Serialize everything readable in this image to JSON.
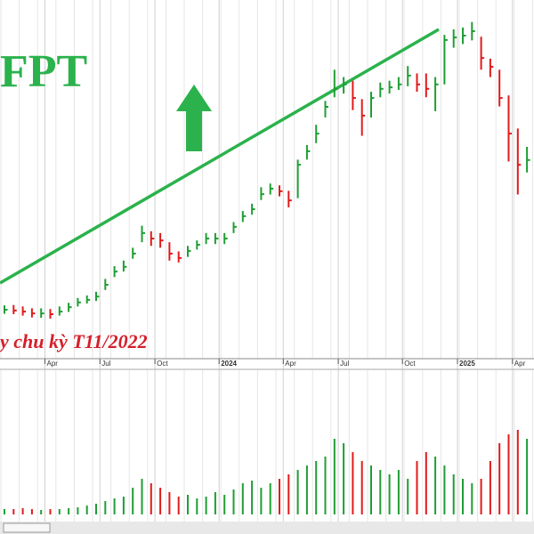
{
  "chart_data": {
    "type": "hlc",
    "title": "FPT",
    "annotation": "y chu kỳ T11/2022",
    "categories": [
      null,
      null,
      null,
      null,
      null,
      "Apr",
      null,
      null,
      null,
      null,
      null,
      "Jul",
      null,
      null,
      null,
      null,
      null,
      "Oct",
      null,
      null,
      null,
      null,
      null,
      null,
      "2024",
      null,
      null,
      null,
      null,
      null,
      null,
      "Apr",
      null,
      null,
      null,
      null,
      null,
      "Jul",
      null,
      null,
      null,
      null,
      null,
      null,
      "Oct",
      null,
      null,
      null,
      null,
      null,
      "2025",
      null,
      null,
      null,
      null,
      null,
      "Apr",
      null
    ],
    "high": [
      81.8,
      81.9,
      81.5,
      81,
      81,
      80.8,
      81.5,
      82.5,
      83.8,
      84.5,
      85.5,
      89,
      92.5,
      94,
      97.5,
      103.5,
      102,
      101.5,
      99,
      96.5,
      98,
      99.5,
      101.5,
      101.5,
      101.5,
      104.5,
      107.5,
      109.5,
      114,
      115,
      114.5,
      113,
      121.5,
      125.5,
      131,
      137.5,
      146,
      144,
      143,
      138,
      140,
      142.5,
      143,
      144,
      147,
      145,
      145,
      144,
      155.5,
      157,
      157.5,
      159,
      155,
      149,
      146,
      139,
      130,
      125
    ],
    "low": [
      79.5,
      79.4,
      79,
      78.5,
      78.4,
      78.2,
      79,
      80,
      81.5,
      82.3,
      83,
      86,
      89.5,
      91,
      94.5,
      99,
      98,
      97.5,
      94,
      93.5,
      95,
      97,
      98.5,
      98.5,
      98.5,
      101.5,
      104.5,
      106.5,
      110.5,
      112,
      111.5,
      108.5,
      111,
      121.5,
      126,
      133,
      138.5,
      139.5,
      135,
      128,
      133,
      138.5,
      139.5,
      140.5,
      141.5,
      140,
      138.5,
      134.7,
      142,
      152,
      153,
      154,
      146,
      144,
      136,
      121,
      112,
      118
    ],
    "close": [
      80.6,
      80.4,
      80.1,
      79.6,
      79.6,
      79.4,
      80.1,
      81.3,
      82.6,
      83.3,
      84.2,
      87.4,
      91.0,
      92.3,
      95.9,
      101.5,
      100.0,
      99.5,
      95.9,
      94.7,
      96.6,
      98.3,
      100.0,
      100.0,
      100.0,
      103.2,
      106.1,
      108.0,
      112.1,
      113.6,
      112.9,
      110.4,
      120.1,
      123.8,
      128.6,
      135.9,
      140.8,
      142.0,
      138.3,
      133.5,
      138.3,
      140.8,
      141.2,
      142.0,
      144.4,
      142.0,
      140.8,
      142.0,
      154.1,
      154.8,
      155.3,
      156.5,
      149.2,
      146.8,
      138.3,
      128.6,
      120.1,
      121.4
    ],
    "volume": [
      6,
      6,
      7,
      6,
      5,
      6,
      6,
      7,
      8,
      10,
      12,
      15,
      18,
      20,
      30,
      40,
      35,
      30,
      25,
      20,
      22,
      18,
      20,
      25,
      22,
      28,
      35,
      38,
      30,
      35,
      40,
      45,
      50,
      55,
      60,
      65,
      85,
      80,
      70,
      60,
      55,
      50,
      45,
      50,
      40,
      60,
      70,
      65,
      55,
      45,
      40,
      35,
      40,
      60,
      80,
      90,
      95,
      85
    ],
    "ylim": [
      68,
      165
    ],
    "y2lim": [
      0,
      160
    ],
    "up_color": "#1f9e34",
    "down_color": "#e01b1b"
  }
}
